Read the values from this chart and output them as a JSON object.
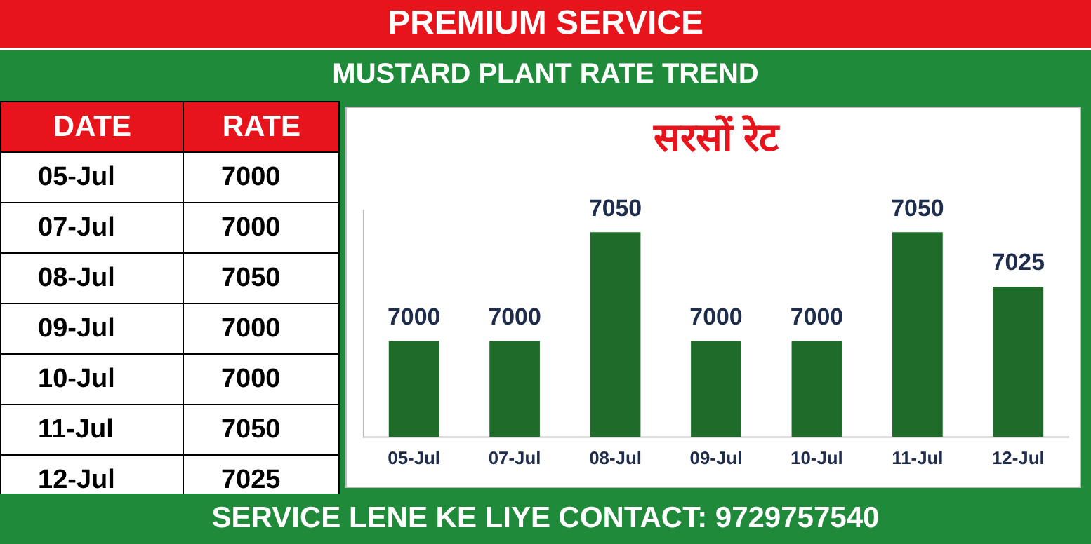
{
  "chart_data": {
    "type": "bar",
    "title": "सरसों रेट",
    "categories": [
      "05-Jul",
      "07-Jul",
      "08-Jul",
      "09-Jul",
      "10-Jul",
      "11-Jul",
      "12-Jul"
    ],
    "values": [
      7000,
      7000,
      7050,
      7000,
      7000,
      7050,
      7025
    ],
    "color": "#1f6b2a",
    "value_labels": [
      "7000",
      "7000",
      "7050",
      "7000",
      "7000",
      "7050",
      "7025"
    ],
    "ylim": [
      6956,
      7060
    ],
    "tick_labels": "x",
    "grid": false,
    "legend": false,
    "annotations": [
      "PREMIUM SERVICE",
      "MUSTARD PLANT RATE TREND",
      "SERVICE LENE KE LIYE CONTACT: 9729757540",
      "DATE",
      "RATE"
    ]
  }
}
